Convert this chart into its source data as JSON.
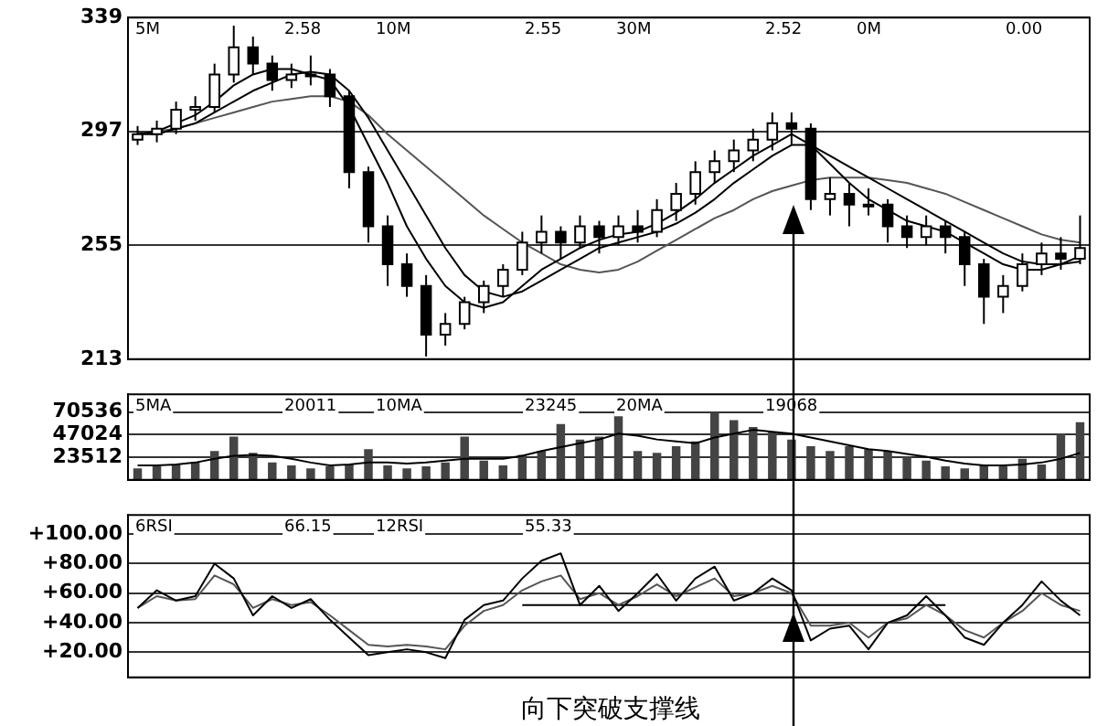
{
  "chart_data": [
    {
      "type": "candlestick",
      "categories": [
        null,
        null,
        null,
        null,
        null,
        null,
        null,
        null,
        null,
        null,
        null,
        null,
        null,
        null,
        null,
        null,
        null,
        null,
        null,
        null,
        null,
        null,
        null,
        null,
        null,
        null,
        null,
        null,
        null,
        null,
        null,
        null,
        null,
        null,
        null,
        null,
        null,
        null,
        null,
        null,
        null,
        null,
        null,
        null,
        null,
        null,
        null,
        null,
        null,
        null
      ],
      "ohlc": [
        [
          294,
          299,
          292,
          296
        ],
        [
          296,
          301,
          293,
          298
        ],
        [
          298,
          308,
          296,
          305
        ],
        [
          305,
          310,
          301,
          306
        ],
        [
          306,
          322,
          304,
          318
        ],
        [
          318,
          336,
          315,
          328
        ],
        [
          328,
          332,
          318,
          322
        ],
        [
          322,
          325,
          312,
          316
        ],
        [
          316,
          322,
          313,
          318
        ],
        [
          318,
          325,
          314,
          318
        ],
        [
          318,
          320,
          306,
          310
        ],
        [
          310,
          312,
          276,
          282
        ],
        [
          282,
          284,
          256,
          262
        ],
        [
          262,
          266,
          240,
          248
        ],
        [
          248,
          252,
          236,
          240
        ],
        [
          240,
          244,
          214,
          222
        ],
        [
          222,
          230,
          218,
          226
        ],
        [
          226,
          236,
          224,
          234
        ],
        [
          234,
          242,
          230,
          240
        ],
        [
          240,
          248,
          236,
          246
        ],
        [
          246,
          260,
          244,
          256
        ],
        [
          256,
          266,
          252,
          260
        ],
        [
          260,
          262,
          250,
          256
        ],
        [
          256,
          266,
          254,
          262
        ],
        [
          262,
          264,
          252,
          258
        ],
        [
          258,
          266,
          255,
          262
        ],
        [
          262,
          268,
          256,
          260
        ],
        [
          260,
          272,
          258,
          268
        ],
        [
          268,
          278,
          264,
          274
        ],
        [
          274,
          286,
          270,
          282
        ],
        [
          282,
          290,
          278,
          286
        ],
        [
          286,
          294,
          282,
          290
        ],
        [
          290,
          298,
          286,
          294
        ],
        [
          294,
          304,
          290,
          300
        ],
        [
          300,
          304,
          292,
          298
        ],
        [
          298,
          300,
          268,
          272
        ],
        [
          272,
          280,
          266,
          274
        ],
        [
          274,
          278,
          262,
          270
        ],
        [
          270,
          276,
          266,
          270
        ],
        [
          270,
          272,
          256,
          262
        ],
        [
          262,
          266,
          254,
          258
        ],
        [
          258,
          266,
          255,
          262
        ],
        [
          262,
          264,
          252,
          258
        ],
        [
          258,
          260,
          240,
          248
        ],
        [
          248,
          250,
          226,
          236
        ],
        [
          236,
          244,
          230,
          240
        ],
        [
          240,
          252,
          238,
          248
        ],
        [
          248,
          256,
          244,
          252
        ],
        [
          252,
          258,
          246,
          250
        ],
        [
          250,
          266,
          248,
          254
        ]
      ],
      "series": [
        {
          "type": "line",
          "color": "#000000",
          "values": [
            296,
            297,
            300,
            303,
            308,
            314,
            318,
            320,
            320,
            318,
            316,
            306,
            292,
            278,
            262,
            250,
            240,
            234,
            232,
            234,
            240,
            246,
            250,
            254,
            257,
            259,
            260,
            263,
            267,
            272,
            278,
            283,
            288,
            292,
            296,
            292,
            285,
            278,
            272,
            268,
            264,
            262,
            260,
            256,
            252,
            248,
            246,
            246,
            248,
            251
          ]
        },
        {
          "type": "line",
          "color": "#000000",
          "values": [
            296,
            296,
            298,
            300,
            304,
            308,
            312,
            315,
            318,
            319,
            318,
            312,
            302,
            290,
            278,
            266,
            254,
            244,
            238,
            236,
            238,
            242,
            246,
            250,
            254,
            256,
            258,
            260,
            263,
            267,
            272,
            278,
            283,
            288,
            292,
            292,
            288,
            284,
            280,
            276,
            272,
            268,
            264,
            260,
            256,
            252,
            249,
            248,
            248,
            249
          ]
        },
        {
          "type": "line",
          "color": "#555555",
          "values": [
            296,
            297,
            298,
            300,
            302,
            304,
            306,
            308,
            309,
            310,
            310,
            308,
            303,
            296,
            290,
            284,
            278,
            272,
            266,
            261,
            256,
            252,
            248,
            246,
            245,
            246,
            249,
            253,
            257,
            261,
            265,
            268,
            272,
            275,
            277,
            279,
            280,
            280,
            280,
            279,
            278,
            276,
            274,
            271,
            268,
            265,
            262,
            259,
            257,
            256
          ]
        }
      ],
      "ylim": [
        213,
        339
      ],
      "yticks": [
        213,
        255,
        297,
        339
      ],
      "grid": "y",
      "tick_labels": "y",
      "marker": "none",
      "annotations": [
        "5M",
        "2.58",
        "10M",
        "2.55",
        "30M",
        "2.52",
        "0M",
        "0.00"
      ]
    },
    {
      "type": "bar",
      "categories": [
        null,
        null,
        null,
        null,
        null,
        null,
        null,
        null,
        null,
        null,
        null,
        null,
        null,
        null,
        null,
        null,
        null,
        null,
        null,
        null,
        null,
        null,
        null,
        null,
        null,
        null,
        null,
        null,
        null,
        null,
        null,
        null,
        null,
        null,
        null,
        null,
        null,
        null,
        null,
        null,
        null,
        null,
        null,
        null,
        null,
        null,
        null,
        null,
        null,
        null
      ],
      "series": [
        {
          "type": "bar",
          "color": "#444444",
          "values": [
            12000,
            14000,
            16000,
            18000,
            30000,
            45000,
            28000,
            18000,
            15000,
            12000,
            14000,
            16000,
            32000,
            15000,
            12000,
            14000,
            18000,
            45000,
            20000,
            15000,
            26000,
            30000,
            58000,
            42000,
            45000,
            70000,
            30000,
            28000,
            35000,
            40000,
            70000,
            62000,
            55000,
            50000,
            42000,
            35000,
            30000,
            35000,
            32000,
            30000,
            24000,
            20000,
            14000,
            12000,
            15000,
            14000,
            22000,
            16000,
            48000,
            60000
          ]
        },
        {
          "type": "line",
          "color": "#000000",
          "values": [
            15000,
            15000,
            16000,
            18000,
            22000,
            25000,
            26000,
            25000,
            22000,
            18000,
            15000,
            16000,
            18000,
            18000,
            17000,
            18000,
            20000,
            22000,
            22000,
            22000,
            25000,
            30000,
            34000,
            38000,
            42000,
            48000,
            46000,
            42000,
            40000,
            38000,
            44000,
            48000,
            52000,
            50000,
            48000,
            44000,
            40000,
            36000,
            32000,
            30000,
            27000,
            24000,
            20000,
            17000,
            15000,
            15000,
            16000,
            18000,
            22000,
            28000
          ]
        }
      ],
      "ylim": [
        0,
        89000
      ],
      "yticks": [
        23512,
        47024,
        70536
      ],
      "grid": "y",
      "tick_labels": "y",
      "marker": "none",
      "annotations": [
        "5MA",
        "20011",
        "10MA",
        "23245",
        "20MA",
        "19068"
      ]
    },
    {
      "type": "line",
      "categories": [
        null,
        null,
        null,
        null,
        null,
        null,
        null,
        null,
        null,
        null,
        null,
        null,
        null,
        null,
        null,
        null,
        null,
        null,
        null,
        null,
        null,
        null,
        null,
        null,
        null,
        null,
        null,
        null,
        null,
        null,
        null,
        null,
        null,
        null,
        null,
        null,
        null,
        null,
        null,
        null,
        null,
        null,
        null,
        null,
        null,
        null,
        null,
        null,
        null,
        null
      ],
      "series": [
        {
          "color": "#000000",
          "values": [
            50,
            62,
            55,
            58,
            80,
            70,
            45,
            58,
            50,
            56,
            42,
            30,
            18,
            20,
            22,
            20,
            16,
            42,
            52,
            55,
            70,
            82,
            87,
            52,
            65,
            48,
            60,
            73,
            55,
            70,
            78,
            55,
            60,
            70,
            62,
            28,
            36,
            38,
            22,
            40,
            45,
            58,
            45,
            30,
            25,
            40,
            52,
            68,
            55,
            45
          ]
        },
        {
          "color": "#555555",
          "values": [
            50,
            58,
            55,
            56,
            72,
            66,
            50,
            56,
            52,
            54,
            45,
            35,
            25,
            24,
            25,
            24,
            22,
            38,
            48,
            52,
            62,
            68,
            72,
            56,
            60,
            52,
            58,
            66,
            58,
            64,
            70,
            58,
            60,
            65,
            60,
            38,
            38,
            40,
            30,
            40,
            43,
            52,
            45,
            35,
            30,
            40,
            48,
            60,
            52,
            48
          ]
        },
        {
          "color": "#000000",
          "values": [
            null,
            null,
            null,
            null,
            null,
            null,
            null,
            null,
            null,
            null,
            null,
            null,
            null,
            null,
            null,
            null,
            null,
            null,
            null,
            null,
            52,
            52,
            52,
            52,
            52,
            52,
            52,
            52,
            52,
            52,
            52,
            52,
            52,
            52,
            52,
            52,
            52,
            52,
            52,
            52,
            52,
            52,
            52,
            null,
            null,
            null,
            null,
            null,
            null,
            null
          ]
        }
      ],
      "ylim": [
        3,
        113
      ],
      "yticks": [
        {
          "value": 20,
          "label": "+20.00"
        },
        {
          "value": 40,
          "label": "+40.00"
        },
        {
          "value": 60,
          "label": "+60.00"
        },
        {
          "value": 80,
          "label": "+80.00"
        },
        {
          "value": 100,
          "label": "+100.00"
        }
      ],
      "grid": "y",
      "tick_labels": "y",
      "marker": "none",
      "annotations": [
        "6RSI",
        "66.15",
        "12RSI",
        "55.33",
        "向下突破支撑线"
      ]
    }
  ]
}
